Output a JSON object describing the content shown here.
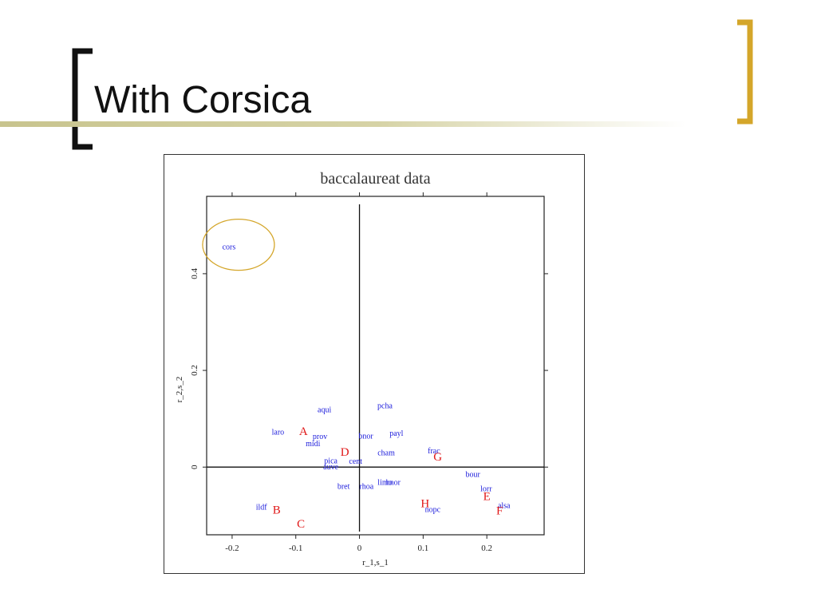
{
  "slide": {
    "title": "With Corsica",
    "accent_color": "#d4a62a",
    "rule_color": "#c8c48e"
  },
  "chart_data": {
    "type": "scatter",
    "title": "baccalaureat data",
    "xlabel": "r_1,s_1",
    "ylabel": "r_2,s_2",
    "xlim": [
      -0.24,
      0.29
    ],
    "ylim": [
      -0.14,
      0.56
    ],
    "x_ticks": [
      -0.2,
      -0.1,
      0,
      0.1,
      0.2
    ],
    "x_tick_labels": [
      "-0.2",
      "-0.1",
      "0",
      "0.1",
      "0.2"
    ],
    "y_ticks": [
      0,
      0.2,
      0.4
    ],
    "y_tick_labels": [
      "0",
      "0.2",
      "0.4"
    ],
    "reference_lines": {
      "x": 0,
      "y": 0
    },
    "grid": false,
    "highlight": {
      "label": "cors",
      "color": "#d4a62a"
    },
    "series": [
      {
        "color": "#1a1adb",
        "points": [
          {
            "label": "cors",
            "x": -0.205,
            "y": 0.455
          },
          {
            "label": "aqui",
            "x": -0.055,
            "y": 0.118
          },
          {
            "label": "pcha",
            "x": 0.04,
            "y": 0.127
          },
          {
            "label": "laro",
            "x": -0.128,
            "y": 0.072
          },
          {
            "label": "prov",
            "x": -0.062,
            "y": 0.063
          },
          {
            "label": "bnor",
            "x": 0.01,
            "y": 0.064
          },
          {
            "label": "payl",
            "x": 0.058,
            "y": 0.07
          },
          {
            "label": "midi",
            "x": -0.073,
            "y": 0.048
          },
          {
            "label": "cham",
            "x": 0.042,
            "y": 0.029
          },
          {
            "label": "frac",
            "x": 0.117,
            "y": 0.033
          },
          {
            "label": "pica",
            "x": -0.045,
            "y": 0.013
          },
          {
            "label": "cent",
            "x": -0.006,
            "y": 0.012
          },
          {
            "label": "auve",
            "x": -0.045,
            "y": 0.0
          },
          {
            "label": "bour",
            "x": 0.178,
            "y": -0.015
          },
          {
            "label": "bret",
            "x": -0.025,
            "y": -0.04
          },
          {
            "label": "rhoa",
            "x": 0.011,
            "y": -0.04
          },
          {
            "label": "limo",
            "x": 0.04,
            "y": -0.032
          },
          {
            "label": "hnor",
            "x": 0.053,
            "y": -0.032
          },
          {
            "label": "lorr",
            "x": 0.199,
            "y": -0.045
          },
          {
            "label": "ildf",
            "x": -0.154,
            "y": -0.083
          },
          {
            "label": "nopc",
            "x": 0.115,
            "y": -0.088
          },
          {
            "label": "alsa",
            "x": 0.227,
            "y": -0.08
          }
        ]
      },
      {
        "color": "#e01818",
        "points": [
          {
            "label": "A",
            "x": -0.088,
            "y": 0.075
          },
          {
            "label": "D",
            "x": -0.023,
            "y": 0.032
          },
          {
            "label": "G",
            "x": 0.123,
            "y": 0.022
          },
          {
            "label": "E",
            "x": 0.2,
            "y": -0.06
          },
          {
            "label": "H",
            "x": 0.103,
            "y": -0.075
          },
          {
            "label": "B",
            "x": -0.13,
            "y": -0.088
          },
          {
            "label": "F",
            "x": 0.22,
            "y": -0.09
          },
          {
            "label": "C",
            "x": -0.092,
            "y": -0.117
          }
        ]
      }
    ]
  }
}
